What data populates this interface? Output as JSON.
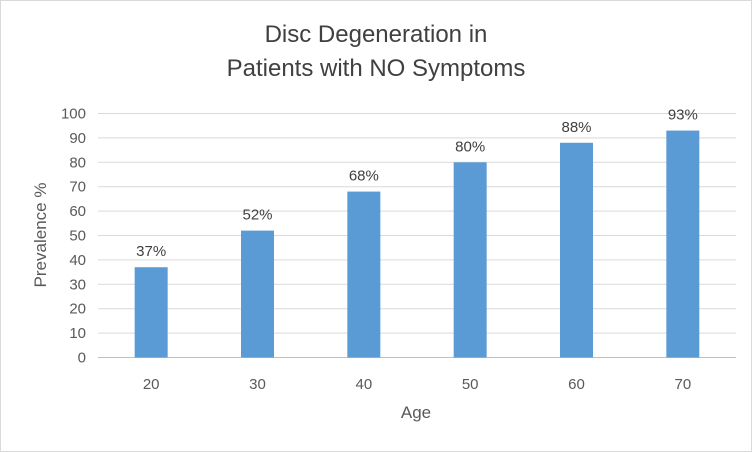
{
  "chart_data": {
    "type": "bar",
    "title_lines": [
      "Disc Degeneration in",
      "Patients with NO Symptoms"
    ],
    "categories": [
      "20",
      "30",
      "40",
      "50",
      "60",
      "70"
    ],
    "values": [
      37,
      52,
      68,
      80,
      88,
      93
    ],
    "data_labels": [
      "37%",
      "52%",
      "68%",
      "80%",
      "88%",
      "93%"
    ],
    "xlabel": "Age",
    "ylabel": "Prevalence %",
    "ylim": [
      0,
      100
    ],
    "yticks": [
      0,
      10,
      20,
      30,
      40,
      50,
      60,
      70,
      80,
      90,
      100
    ],
    "grid": true,
    "legend": "none",
    "colors": {
      "bar": "#5b9bd5",
      "grid": "#d9d9d9",
      "axis": "#bfbfbf"
    }
  }
}
